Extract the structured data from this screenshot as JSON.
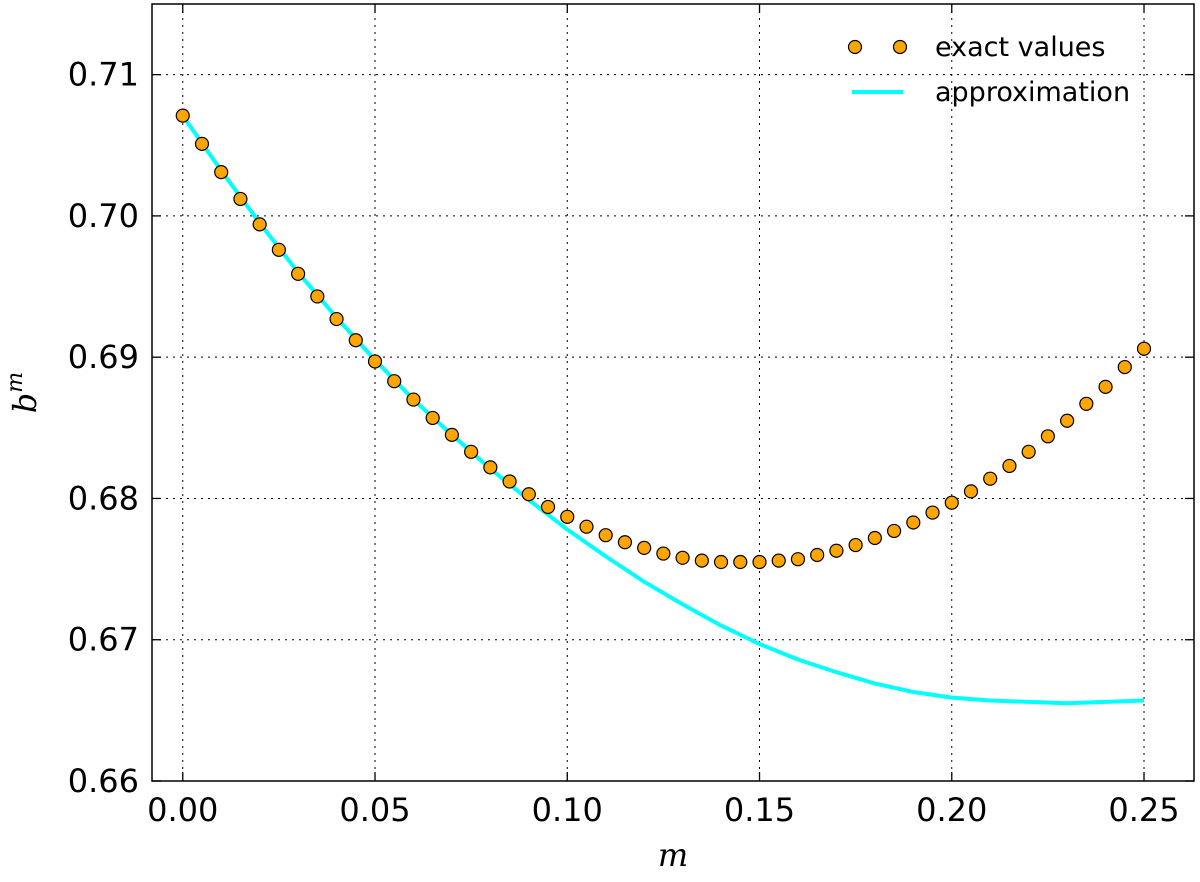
{
  "chart_data": {
    "type": "line",
    "xlabel": "m",
    "ylabel": "b",
    "ylabel_superscript": "m",
    "xlim": [
      -0.008,
      0.263
    ],
    "ylim": [
      0.66,
      0.715
    ],
    "x_ticks": [
      0.0,
      0.05,
      0.1,
      0.15,
      0.2,
      0.25
    ],
    "x_tick_labels": [
      "0.00",
      "0.05",
      "0.10",
      "0.15",
      "0.20",
      "0.25"
    ],
    "y_ticks": [
      0.66,
      0.67,
      0.68,
      0.69,
      0.7,
      0.71
    ],
    "y_tick_labels": [
      "0.66",
      "0.67",
      "0.68",
      "0.69",
      "0.70",
      "0.71"
    ],
    "grid": true,
    "legend_position": "top-right",
    "series": [
      {
        "name": "exact values",
        "kind": "scatter",
        "color": "#FFA500",
        "edge_color": "#000000",
        "x": [
          0.0,
          0.005,
          0.01,
          0.015,
          0.02,
          0.025,
          0.03,
          0.035,
          0.04,
          0.045,
          0.05,
          0.055,
          0.06,
          0.065,
          0.07,
          0.075,
          0.08,
          0.085,
          0.09,
          0.095,
          0.1,
          0.105,
          0.11,
          0.115,
          0.12,
          0.125,
          0.13,
          0.135,
          0.14,
          0.145,
          0.15,
          0.155,
          0.16,
          0.165,
          0.17,
          0.175,
          0.18,
          0.185,
          0.19,
          0.195,
          0.2,
          0.205,
          0.21,
          0.215,
          0.22,
          0.225,
          0.23,
          0.235,
          0.24,
          0.245,
          0.25
        ],
        "y": [
          0.7071,
          0.7051,
          0.7031,
          0.7012,
          0.6994,
          0.6976,
          0.6959,
          0.6943,
          0.6927,
          0.6912,
          0.6897,
          0.6883,
          0.687,
          0.6857,
          0.6845,
          0.6833,
          0.6822,
          0.6812,
          0.6803,
          0.6794,
          0.6787,
          0.678,
          0.6774,
          0.6769,
          0.6765,
          0.6761,
          0.6758,
          0.6756,
          0.6755,
          0.6755,
          0.6755,
          0.6756,
          0.6757,
          0.676,
          0.6763,
          0.6767,
          0.6772,
          0.6777,
          0.6783,
          0.679,
          0.6797,
          0.6805,
          0.6814,
          0.6823,
          0.6833,
          0.6844,
          0.6855,
          0.6867,
          0.6879,
          0.6893,
          0.6906
        ]
      },
      {
        "name": "approximation",
        "kind": "line",
        "color": "#00FFFF",
        "x": [
          0.0,
          0.01,
          0.02,
          0.03,
          0.04,
          0.05,
          0.06,
          0.07,
          0.08,
          0.09,
          0.1,
          0.11,
          0.12,
          0.13,
          0.14,
          0.15,
          0.16,
          0.17,
          0.18,
          0.19,
          0.2,
          0.21,
          0.22,
          0.23,
          0.24,
          0.25
        ],
        "y": [
          0.7071,
          0.7032,
          0.6995,
          0.696,
          0.6928,
          0.6898,
          0.687,
          0.6845,
          0.6821,
          0.6799,
          0.6778,
          0.6759,
          0.6741,
          0.6725,
          0.671,
          0.6697,
          0.6686,
          0.6677,
          0.6669,
          0.6663,
          0.6659,
          0.6657,
          0.6656,
          0.6655,
          0.6656,
          0.6657
        ]
      }
    ]
  }
}
